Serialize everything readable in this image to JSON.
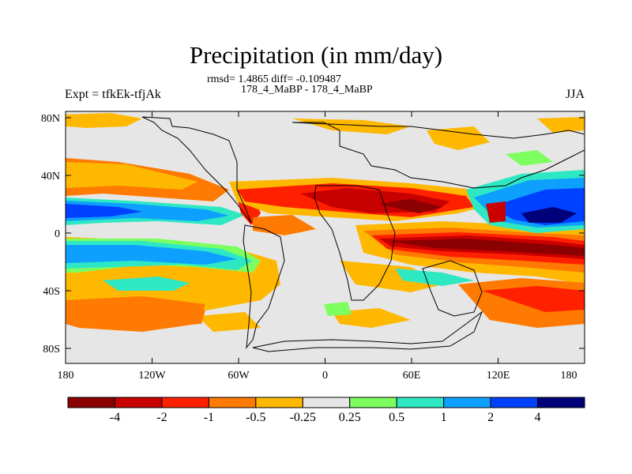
{
  "title": "Precipitation (in mm/day)",
  "subtitle_stats": "rmsd= 1.4865 diff= -0.109487",
  "subtitle_cases": "178_4_MaBP - 178_4_MaBP",
  "left_label": "Expt = tfkEk-tfjAk",
  "right_label": "JJA",
  "lat_ticks": [
    "80N",
    "40N",
    "0",
    "40S",
    "80S"
  ],
  "lon_ticks": [
    "180",
    "120W",
    "60W",
    "0",
    "60E",
    "120E",
    "180"
  ],
  "colorbar": {
    "labels": [
      "-4",
      "-2",
      "-1",
      "-0.5",
      "-0.25",
      "0.25",
      "0.5",
      "1",
      "2",
      "4"
    ],
    "colors": [
      "#8b0000",
      "#c80000",
      "#ff2000",
      "#ff7a00",
      "#ffb800",
      "#e6e6e6",
      "#7dff60",
      "#2ee8c4",
      "#0da0ff",
      "#0040ff",
      "#00007a"
    ]
  },
  "palette": {
    "neutral": "#e6e6e6",
    "dark_red": "#8b0000",
    "red": "#c80000",
    "red_orange": "#ff2000",
    "orange": "#ff7a00",
    "yellow_orange": "#ffb800",
    "light_green": "#7dff60",
    "teal": "#2ee8c4",
    "sky_blue": "#0da0ff",
    "blue": "#0040ff",
    "navy": "#00007a"
  }
}
